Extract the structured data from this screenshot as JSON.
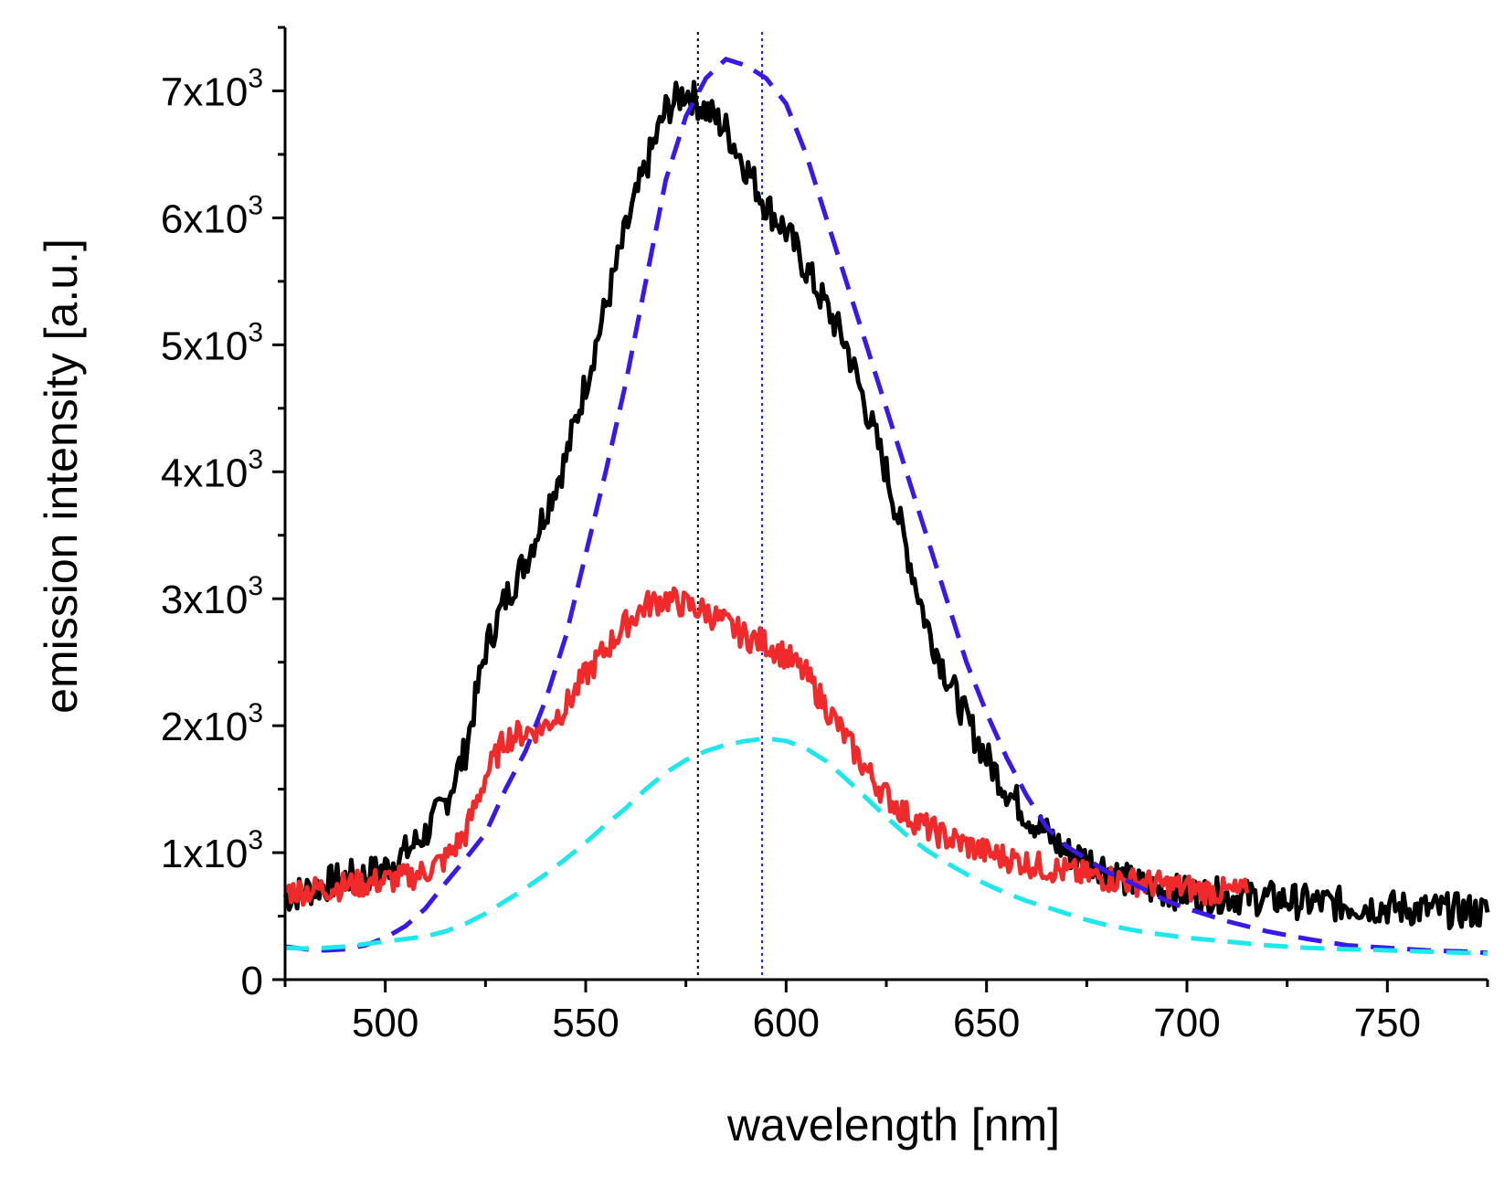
{
  "chart_data": {
    "type": "line",
    "title": "",
    "xlabel": "wavelength [nm]",
    "ylabel": "emission intensity [a.u.]",
    "xlim": [
      475,
      775
    ],
    "ylim": [
      0,
      7500
    ],
    "x_ticks": [
      500,
      550,
      600,
      650,
      700,
      750
    ],
    "x_tick_labels": [
      "500",
      "550",
      "600",
      "650",
      "700",
      "750"
    ],
    "y_ticks": [
      0,
      1000,
      2000,
      3000,
      4000,
      5000,
      6000,
      7000
    ],
    "y_tick_labels": [
      {
        "mantissa": "0",
        "exp": ""
      },
      {
        "mantissa": "1x10",
        "exp": "3"
      },
      {
        "mantissa": "2x10",
        "exp": "3"
      },
      {
        "mantissa": "3x10",
        "exp": "3"
      },
      {
        "mantissa": "4x10",
        "exp": "3"
      },
      {
        "mantissa": "5x10",
        "exp": "3"
      },
      {
        "mantissa": "6x10",
        "exp": "3"
      },
      {
        "mantissa": "7x10",
        "exp": "3"
      }
    ],
    "grid": false,
    "reference_lines": [
      {
        "x": 578,
        "color": "#000000",
        "style": "dotted"
      },
      {
        "x": 594,
        "color": "#2020ff",
        "style": "dotted"
      }
    ],
    "series": [
      {
        "name": "black",
        "color": "#000000",
        "style": "solid",
        "noise": 140,
        "x": [
          475,
          480,
          485,
          490,
          495,
          500,
          505,
          510,
          515,
          520,
          525,
          530,
          535,
          540,
          545,
          550,
          555,
          560,
          565,
          570,
          575,
          580,
          585,
          590,
          595,
          600,
          605,
          610,
          615,
          620,
          625,
          630,
          635,
          640,
          645,
          650,
          655,
          660,
          665,
          670,
          675,
          680,
          685,
          690,
          695,
          700,
          710,
          720,
          730,
          740,
          750,
          760,
          770,
          775
        ],
        "y": [
          650,
          700,
          750,
          800,
          820,
          880,
          1000,
          1150,
          1400,
          1800,
          2600,
          3000,
          3300,
          3700,
          4100,
          4700,
          5300,
          5900,
          6400,
          6850,
          7000,
          6850,
          6700,
          6400,
          6100,
          5900,
          5600,
          5300,
          5000,
          4500,
          4000,
          3400,
          2800,
          2400,
          2050,
          1750,
          1500,
          1300,
          1150,
          1000,
          950,
          880,
          780,
          720,
          700,
          680,
          660,
          640,
          610,
          590,
          570,
          550,
          540,
          530
        ]
      },
      {
        "name": "red",
        "color": "#f02a2a",
        "style": "solid",
        "noise": 110,
        "x": [
          475,
          480,
          485,
          490,
          495,
          500,
          505,
          510,
          515,
          520,
          525,
          530,
          535,
          540,
          545,
          550,
          555,
          560,
          565,
          570,
          575,
          580,
          585,
          590,
          595,
          600,
          605,
          610,
          615,
          620,
          625,
          630,
          635,
          640,
          645,
          650,
          655,
          660,
          665,
          670,
          675,
          680,
          685,
          690,
          695,
          700,
          705,
          710,
          715
        ],
        "y": [
          700,
          700,
          720,
          740,
          760,
          780,
          800,
          850,
          950,
          1150,
          1600,
          1900,
          1950,
          2000,
          2150,
          2400,
          2600,
          2800,
          2950,
          3000,
          2950,
          2900,
          2800,
          2700,
          2650,
          2550,
          2400,
          2150,
          1900,
          1650,
          1450,
          1300,
          1200,
          1120,
          1060,
          1000,
          960,
          920,
          880,
          850,
          820,
          800,
          780,
          760,
          740,
          720,
          700,
          690,
          680
        ]
      },
      {
        "name": "blue dashed",
        "color": "#3a18e8",
        "style": "dashed",
        "noise": 0,
        "x": [
          475,
          480,
          485,
          490,
          495,
          500,
          505,
          510,
          515,
          520,
          525,
          530,
          535,
          540,
          545,
          550,
          555,
          560,
          565,
          570,
          575,
          580,
          585,
          590,
          595,
          600,
          605,
          610,
          615,
          620,
          625,
          630,
          635,
          640,
          645,
          650,
          655,
          660,
          665,
          670,
          675,
          680,
          685,
          690,
          695,
          700,
          710,
          720,
          730,
          740,
          750,
          760,
          770,
          775
        ],
        "y": [
          260,
          240,
          230,
          240,
          270,
          330,
          420,
          560,
          760,
          950,
          1150,
          1500,
          1800,
          2200,
          2700,
          3350,
          4000,
          4700,
          5500,
          6300,
          6800,
          7100,
          7250,
          7200,
          7100,
          6900,
          6500,
          6000,
          5500,
          5000,
          4500,
          4000,
          3500,
          3000,
          2500,
          2100,
          1750,
          1450,
          1200,
          1050,
          950,
          850,
          780,
          700,
          620,
          560,
          460,
          380,
          320,
          270,
          250,
          230,
          220,
          210
        ]
      },
      {
        "name": "cyan dashed",
        "color": "#1ee8ec",
        "style": "dashed",
        "noise": 0,
        "x": [
          475,
          480,
          485,
          490,
          495,
          500,
          505,
          510,
          515,
          520,
          525,
          530,
          535,
          540,
          545,
          550,
          555,
          560,
          565,
          570,
          575,
          580,
          585,
          590,
          595,
          600,
          605,
          610,
          615,
          620,
          625,
          630,
          635,
          640,
          645,
          650,
          655,
          660,
          665,
          670,
          675,
          680,
          685,
          690,
          695,
          700,
          710,
          720,
          730,
          740,
          750,
          760,
          770,
          775
        ],
        "y": [
          250,
          245,
          250,
          260,
          280,
          300,
          320,
          340,
          380,
          440,
          520,
          620,
          720,
          830,
          950,
          1080,
          1220,
          1350,
          1500,
          1630,
          1730,
          1800,
          1850,
          1880,
          1900,
          1880,
          1820,
          1720,
          1580,
          1430,
          1280,
          1140,
          1020,
          920,
          830,
          750,
          680,
          620,
          570,
          520,
          470,
          430,
          400,
          370,
          350,
          330,
          300,
          270,
          250,
          240,
          230,
          220,
          210,
          205
        ]
      }
    ]
  }
}
